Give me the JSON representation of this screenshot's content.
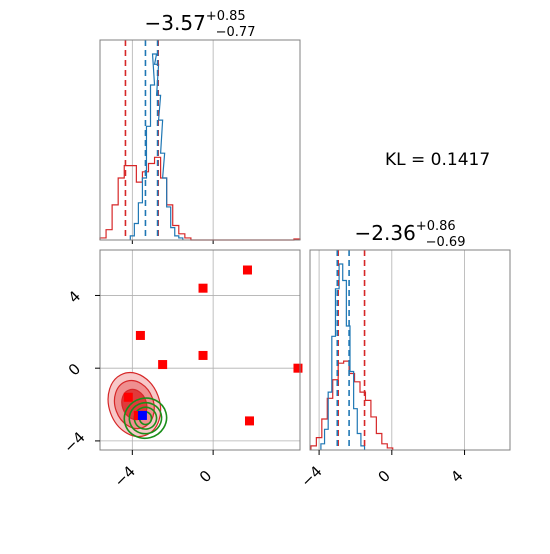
{
  "chart_data": [
    {
      "type": "histogram",
      "panel": "marginal-x1",
      "title": {
        "median": "−3.57",
        "plus": "+0.85",
        "minus": "−0.77"
      },
      "xlim": [
        -5.6,
        4.3
      ],
      "grid": true,
      "series": [
        {
          "color": "#d62728",
          "bins": [
            -5.45,
            -5.15,
            -4.85,
            -4.55,
            -4.25,
            -3.95,
            -3.65,
            -3.35,
            -3.05,
            -2.75,
            -2.45,
            -2.15,
            -1.85,
            -1.55,
            -1.25,
            -0.95,
            -0.65,
            -0.35,
            -0.05,
            0.25,
            0.55,
            0.85,
            1.15,
            1.45,
            1.75,
            2.05,
            2.35,
            2.65,
            2.95,
            3.25,
            3.55,
            3.85,
            4.15
          ],
          "values": [
            0.01,
            0.05,
            0.17,
            0.3,
            0.36,
            0.36,
            0.28,
            0.33,
            0.37,
            0.4,
            0.3,
            0.17,
            0.07,
            0.03,
            0.01,
            0,
            0,
            0,
            0,
            0,
            0,
            0,
            0,
            0,
            0,
            0,
            0,
            0,
            0,
            0,
            0,
            0,
            0.005
          ],
          "quantile_lines": [
            -4.34,
            -2.72
          ]
        },
        {
          "color": "#1f77b4",
          "bins": [
            -4.0,
            -3.8,
            -3.6,
            -3.4,
            -3.2,
            -3.0,
            -2.9,
            -2.8,
            -2.7,
            -2.6,
            -2.5,
            -2.4,
            -2.2,
            -2.0,
            -1.8,
            -1.6
          ],
          "values": [
            0.02,
            0.08,
            0.18,
            0.3,
            0.55,
            0.75,
            0.9,
            0.85,
            0.7,
            0.58,
            0.42,
            0.3,
            0.16,
            0.06,
            0.02,
            0.01
          ],
          "quantile_lines": [
            -3.35,
            -2.75
          ]
        }
      ]
    },
    {
      "type": "scatter",
      "panel": "joint-x1-x2",
      "xlim": [
        -5.6,
        4.3
      ],
      "ylim": [
        -4.5,
        6.5
      ],
      "xticks": [
        "−4",
        "0"
      ],
      "yticks": [
        "−4",
        "0",
        "4"
      ],
      "grid": true,
      "points": [
        [
          -4.2,
          -1.6
        ],
        [
          -3.6,
          1.8
        ],
        [
          -2.5,
          0.2
        ],
        [
          -0.5,
          4.4
        ],
        [
          1.7,
          5.4
        ],
        [
          -0.5,
          0.7
        ],
        [
          4.2,
          0.0
        ],
        [
          1.8,
          -2.9
        ],
        [
          -3.7,
          -2.6
        ]
      ],
      "blue_point": [
        -3.5,
        -2.6
      ],
      "red_contours": {
        "center": [
          -3.9,
          -2.0
        ],
        "levels": [
          {
            "rx": 1.25,
            "ry": 1.8
          },
          {
            "rx": 0.95,
            "ry": 1.35
          },
          {
            "rx": 0.6,
            "ry": 0.85
          }
        ]
      },
      "green_contours": {
        "center": [
          -3.35,
          -2.75
        ],
        "levels": [
          {
            "rx": 1.05,
            "ry": 1.1
          },
          {
            "rx": 0.8,
            "ry": 0.85
          },
          {
            "rx": 0.55,
            "ry": 0.6
          },
          {
            "rx": 0.3,
            "ry": 0.35
          }
        ]
      }
    },
    {
      "type": "histogram",
      "panel": "marginal-x2",
      "title": {
        "median": "−2.36",
        "plus": "+0.86",
        "minus": "−0.69"
      },
      "xlim": [
        -4.5,
        6.5
      ],
      "xticks": [
        "−4",
        "0",
        "4"
      ],
      "grid": true,
      "series": [
        {
          "color": "#d62728",
          "bins": [
            -4.3,
            -4.0,
            -3.7,
            -3.4,
            -3.1,
            -2.8,
            -2.5,
            -2.2,
            -1.9,
            -1.6,
            -1.3,
            -1.0,
            -0.7,
            -0.4,
            -0.1
          ],
          "values": [
            0.02,
            0.06,
            0.15,
            0.25,
            0.34,
            0.42,
            0.43,
            0.37,
            0.33,
            0.28,
            0.24,
            0.16,
            0.08,
            0.03,
            0.01
          ],
          "quantile_lines": [
            -2.95,
            -1.5
          ]
        },
        {
          "color": "#1f77b4",
          "bins": [
            -3.8,
            -3.6,
            -3.4,
            -3.2,
            -3.0,
            -2.8,
            -2.6,
            -2.4,
            -2.2,
            -2.0,
            -1.8,
            -1.6
          ],
          "values": [
            0.03,
            0.1,
            0.28,
            0.55,
            0.78,
            0.9,
            0.82,
            0.6,
            0.38,
            0.2,
            0.08,
            0.02
          ],
          "quantile_lines": [
            -3.0,
            -2.35
          ]
        }
      ]
    }
  ],
  "kl": {
    "label": "KL = 0.1417"
  },
  "colors": {
    "grid": "#b0b0b0",
    "axes": "#808080"
  }
}
